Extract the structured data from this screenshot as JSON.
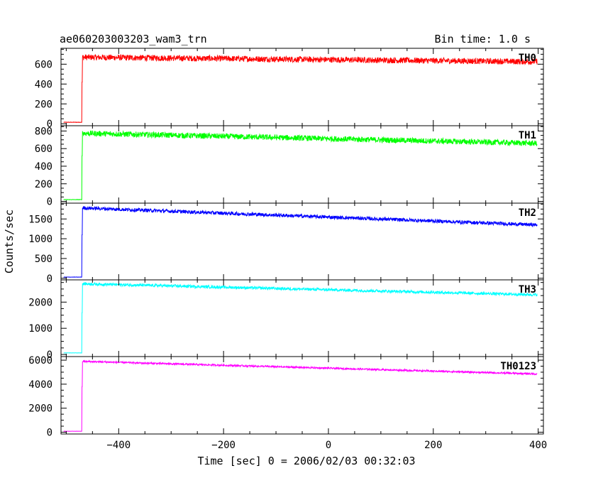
{
  "chart_data": {
    "type": "line",
    "title_left": "ae060203003203_wam3_trn",
    "title_right": "Bin time: 1.0 s",
    "xlabel": "Time [sec] 0 = 2006/02/03 00:32:03",
    "ylabel": "Counts/sec",
    "xlim": [
      -510,
      410
    ],
    "x_ticks": [
      -400,
      -200,
      0,
      200,
      400
    ],
    "x_tick_labels": [
      "−400",
      "−200",
      "0",
      "200",
      "400"
    ],
    "trigger_time": -470,
    "data_start": -505,
    "data_end": 398,
    "panels": [
      {
        "label": "TH0",
        "color": "#ff0000",
        "ylim": [
          -20,
          760
        ],
        "ticks": [
          0,
          200,
          400,
          600
        ],
        "tick_labels": [
          "0",
          "200",
          "400",
          "600"
        ],
        "pre_level": 15,
        "jump_mid": 420,
        "start_level": 670,
        "end_level": 625,
        "noise": 30
      },
      {
        "label": "TH1",
        "color": "#00ff00",
        "ylim": [
          -20,
          860
        ],
        "ticks": [
          0,
          200,
          400,
          600,
          800
        ],
        "tick_labels": [
          "0",
          "200",
          "400",
          "600",
          "800"
        ],
        "pre_level": 20,
        "jump_mid": 520,
        "start_level": 775,
        "end_level": 660,
        "noise": 32
      },
      {
        "label": "TH2",
        "color": "#0000ff",
        "ylim": [
          -40,
          1900
        ],
        "ticks": [
          0,
          500,
          1000,
          1500
        ],
        "tick_labels": [
          "0",
          "500",
          "1000",
          "1500"
        ],
        "pre_level": 30,
        "jump_mid": 1100,
        "start_level": 1780,
        "end_level": 1350,
        "noise": 45
      },
      {
        "label": "TH3",
        "color": "#00ffff",
        "ylim": [
          -80,
          2850
        ],
        "ticks": [
          0,
          1000,
          2000
        ],
        "tick_labels": [
          "0",
          "1000",
          "2000"
        ],
        "pre_level": 60,
        "jump_mid": 1600,
        "start_level": 2700,
        "end_level": 2280,
        "noise": 55
      },
      {
        "label": "TH0123",
        "color": "#ff00ff",
        "ylim": [
          -150,
          6300
        ],
        "ticks": [
          0,
          2000,
          4000,
          6000
        ],
        "tick_labels": [
          "0",
          "2000",
          "4000",
          "6000"
        ],
        "pre_level": 80,
        "jump_mid": 3800,
        "start_level": 5900,
        "end_level": 4850,
        "noise": 70
      }
    ]
  }
}
